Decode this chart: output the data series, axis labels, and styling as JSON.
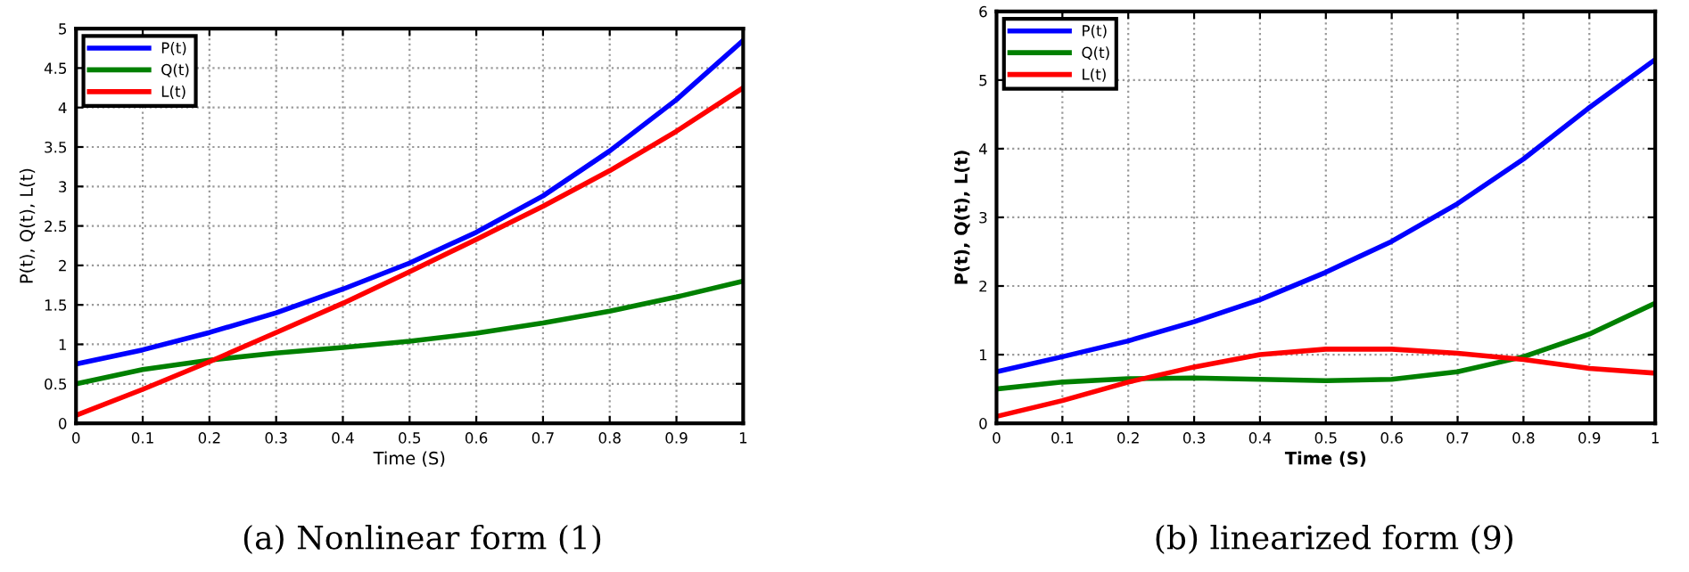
{
  "chart_data": [
    {
      "type": "line",
      "xlabel": "Time (S)",
      "ylabel": "P(t), Q(t), L(t)",
      "x": [
        0,
        0.1,
        0.2,
        0.3,
        0.4,
        0.5,
        0.6,
        0.7,
        0.8,
        0.9,
        1
      ],
      "series": [
        {
          "name": "P(t)",
          "color": "#0000ff",
          "values": [
            0.75,
            0.93,
            1.15,
            1.4,
            1.7,
            2.03,
            2.42,
            2.88,
            3.45,
            4.1,
            4.85
          ]
        },
        {
          "name": "Q(t)",
          "color": "#008000",
          "values": [
            0.5,
            0.68,
            0.8,
            0.89,
            0.96,
            1.04,
            1.14,
            1.27,
            1.42,
            1.6,
            1.8
          ]
        },
        {
          "name": "L(t)",
          "color": "#ff0000",
          "values": [
            0.1,
            0.43,
            0.78,
            1.15,
            1.52,
            1.92,
            2.33,
            2.75,
            3.2,
            3.7,
            4.25
          ]
        }
      ],
      "xlim": [
        0,
        1
      ],
      "ylim": [
        0,
        5
      ],
      "xticks": [
        0,
        0.1,
        0.2,
        0.3,
        0.4,
        0.5,
        0.6,
        0.7,
        0.8,
        0.9,
        1
      ],
      "yticks": [
        0,
        0.5,
        1,
        1.5,
        2,
        2.5,
        3,
        3.5,
        4,
        4.5,
        5
      ],
      "grid": true,
      "legend": "top left",
      "line_style": "solid",
      "annotations": [
        "(a) Nonlinear form (1)"
      ]
    },
    {
      "type": "line",
      "xlabel": "Time (S)",
      "ylabel": "P(t), Q(t), L(t)",
      "x": [
        0,
        0.1,
        0.2,
        0.3,
        0.4,
        0.5,
        0.6,
        0.7,
        0.8,
        0.9,
        1
      ],
      "series": [
        {
          "name": "P(t)",
          "color": "#0000ff",
          "values": [
            0.75,
            0.97,
            1.2,
            1.48,
            1.8,
            2.2,
            2.65,
            3.2,
            3.85,
            4.6,
            5.3
          ]
        },
        {
          "name": "Q(t)",
          "color": "#008000",
          "values": [
            0.5,
            0.6,
            0.65,
            0.66,
            0.64,
            0.62,
            0.64,
            0.75,
            0.97,
            1.3,
            1.75
          ]
        },
        {
          "name": "L(t)",
          "color": "#ff0000",
          "values": [
            0.1,
            0.33,
            0.6,
            0.82,
            1.0,
            1.08,
            1.08,
            1.02,
            0.93,
            0.8,
            0.73
          ]
        }
      ],
      "xlim": [
        0,
        1
      ],
      "ylim": [
        0,
        6
      ],
      "xticks": [
        0,
        0.1,
        0.2,
        0.3,
        0.4,
        0.5,
        0.6,
        0.7,
        0.8,
        0.9,
        1
      ],
      "yticks": [
        0,
        1,
        2,
        3,
        4,
        5,
        6
      ],
      "grid": true,
      "legend": "top left",
      "line_style": "solid",
      "annotations": [
        "(b) linearized form (9)"
      ]
    }
  ]
}
